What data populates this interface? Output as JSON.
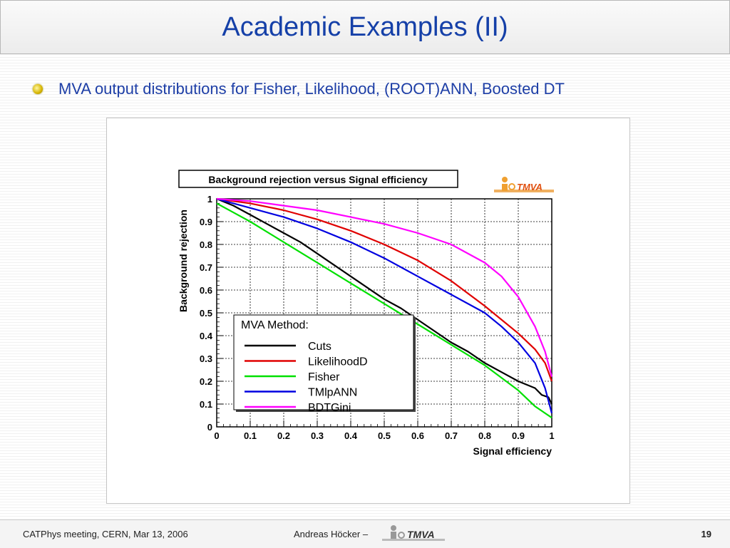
{
  "slide": {
    "title": "Academic Examples (II)",
    "bullet": "MVA output distributions for Fisher, Likelihood, (ROOT)ANN, Boosted DT"
  },
  "footer": {
    "left": "CATPhys meeting, CERN, Mar 13, 2006",
    "author": "Andreas Höcker  –",
    "page": "19",
    "logo_text": "TMVA"
  },
  "chart_data": {
    "type": "line",
    "title": "Background rejection versus Signal efficiency",
    "xlabel": "Signal efficiency",
    "ylabel": "Background rejection",
    "xlim": [
      0,
      1
    ],
    "ylim": [
      0,
      1
    ],
    "xticks": [
      "0",
      "0.1",
      "0.2",
      "0.3",
      "0.4",
      "0.5",
      "0.6",
      "0.7",
      "0.8",
      "0.9",
      "1"
    ],
    "yticks": [
      "0",
      "0.1",
      "0.2",
      "0.3",
      "0.4",
      "0.5",
      "0.6",
      "0.7",
      "0.8",
      "0.9",
      "1"
    ],
    "grid": true,
    "legend_title": "MVA Method:",
    "legend_position": "bottom-center",
    "logo_text": "TMVA",
    "series": [
      {
        "name": "Cuts",
        "color": "#000000",
        "x": [
          0,
          0.05,
          0.1,
          0.15,
          0.2,
          0.25,
          0.3,
          0.35,
          0.4,
          0.45,
          0.5,
          0.55,
          0.6,
          0.65,
          0.7,
          0.75,
          0.8,
          0.85,
          0.9,
          0.95,
          0.97,
          0.99,
          1.0
        ],
        "y": [
          1.0,
          0.97,
          0.93,
          0.89,
          0.85,
          0.81,
          0.76,
          0.71,
          0.66,
          0.61,
          0.56,
          0.52,
          0.47,
          0.42,
          0.37,
          0.33,
          0.28,
          0.24,
          0.2,
          0.17,
          0.14,
          0.13,
          0.1
        ]
      },
      {
        "name": "LikelihoodD",
        "color": "#e00000",
        "x": [
          0,
          0.1,
          0.2,
          0.3,
          0.4,
          0.5,
          0.6,
          0.7,
          0.8,
          0.85,
          0.9,
          0.95,
          0.98,
          1.0
        ],
        "y": [
          1.0,
          0.98,
          0.95,
          0.91,
          0.86,
          0.8,
          0.73,
          0.64,
          0.53,
          0.47,
          0.41,
          0.34,
          0.28,
          0.2
        ]
      },
      {
        "name": "Fisher",
        "color": "#00e000",
        "x": [
          0,
          0.05,
          0.1,
          0.2,
          0.3,
          0.4,
          0.5,
          0.6,
          0.7,
          0.8,
          0.9,
          0.95,
          1.0
        ],
        "y": [
          0.98,
          0.94,
          0.9,
          0.81,
          0.72,
          0.63,
          0.54,
          0.45,
          0.36,
          0.27,
          0.16,
          0.09,
          0.04
        ]
      },
      {
        "name": "TMlpANN",
        "color": "#0000e0",
        "x": [
          0,
          0.1,
          0.2,
          0.3,
          0.4,
          0.5,
          0.6,
          0.7,
          0.8,
          0.85,
          0.9,
          0.95,
          0.98,
          1.0
        ],
        "y": [
          1.0,
          0.96,
          0.92,
          0.87,
          0.81,
          0.74,
          0.66,
          0.58,
          0.5,
          0.44,
          0.37,
          0.28,
          0.17,
          0.06
        ]
      },
      {
        "name": "BDTGini",
        "color": "#ff00ff",
        "x": [
          0,
          0.1,
          0.2,
          0.3,
          0.4,
          0.5,
          0.6,
          0.7,
          0.8,
          0.85,
          0.9,
          0.95,
          0.98,
          1.0
        ],
        "y": [
          1.0,
          0.99,
          0.97,
          0.95,
          0.92,
          0.89,
          0.85,
          0.8,
          0.72,
          0.66,
          0.57,
          0.44,
          0.33,
          0.22
        ]
      }
    ]
  }
}
